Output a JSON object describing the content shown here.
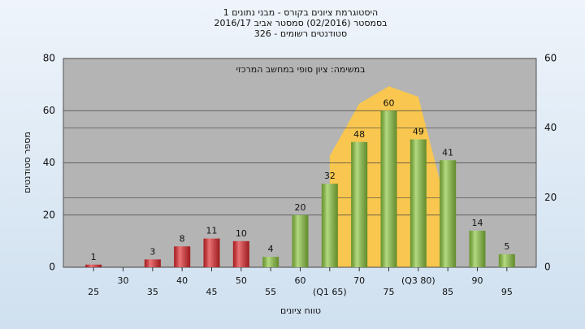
{
  "chart_data": {
    "type": "bar",
    "title": [
      "היסטוגרמת ציונים בקורס - מבני נתונים 1",
      "בסמסטר  (02/2016)  סמסטר אביב 2016/17",
      "סטודנטים רשומים - 326"
    ],
    "annotation": "במשימה: ציון סופי במחשב המרכזי",
    "xlabel": "טווח ציונים",
    "ylabel": "מספר סטודנטים",
    "categories": [
      "25",
      "30",
      "35",
      "40",
      "45",
      "50",
      "55",
      "60",
      "(Q1 65)",
      "70",
      "75",
      "(Q3 80)",
      "85",
      "90",
      "95"
    ],
    "values": [
      1,
      0,
      3,
      8,
      11,
      10,
      4,
      20,
      32,
      48,
      60,
      49,
      41,
      14,
      5
    ],
    "colors": [
      "#e0282c",
      "#e0282c",
      "#e0282c",
      "#e0282c",
      "#e0282c",
      "#e0282c",
      "#8cc63e",
      "#8cc63e",
      "#8cc63e",
      "#8cc63e",
      "#8cc63e",
      "#8cc63e",
      "#8cc63e",
      "#8cc63e",
      "#8cc63e"
    ],
    "area": {
      "values": [
        null,
        null,
        null,
        null,
        null,
        null,
        null,
        null,
        32,
        47,
        52,
        49,
        16,
        null,
        null
      ],
      "axis": "y2",
      "color": "#f9c74f"
    },
    "ylim": [
      0,
      80
    ],
    "yticks": [
      0,
      20,
      40,
      60,
      80
    ],
    "y2lim": [
      0,
      60
    ],
    "y2ticks": [
      0,
      20,
      40,
      60
    ],
    "grid": true
  }
}
